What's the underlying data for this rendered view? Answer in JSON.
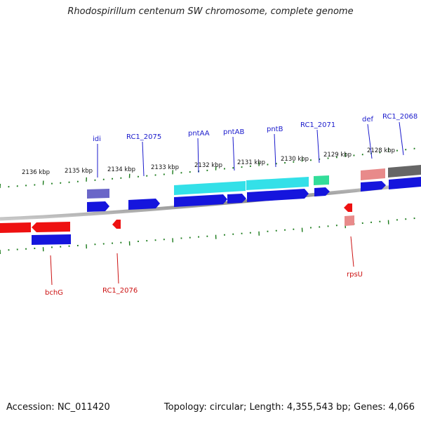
{
  "title": "Rhodospirillum centenum SW chromosome, complete genome",
  "footer": {
    "accession": "Accession: NC_011420",
    "summary": "Topology: circular; Length: 4,355,543 bp; Genes: 4,066"
  },
  "scale_labels": [
    {
      "id": "2136",
      "text": "2136 kbp"
    },
    {
      "id": "2135",
      "text": "2135 kbp"
    },
    {
      "id": "2134",
      "text": "2134 kbp"
    },
    {
      "id": "2133",
      "text": "2133 kbp"
    },
    {
      "id": "2132",
      "text": "2132 kbp"
    },
    {
      "id": "2131",
      "text": "2131 kbp"
    },
    {
      "id": "2130",
      "text": "2130 kbp"
    },
    {
      "id": "2129",
      "text": "2129 kbp"
    },
    {
      "id": "2128",
      "text": "2128 kbp"
    }
  ],
  "genes_top": [
    {
      "id": "idi",
      "label": "idi"
    },
    {
      "id": "rc1_2075",
      "label": "RC1_2075"
    },
    {
      "id": "pntaa",
      "label": "pntAA"
    },
    {
      "id": "pntab",
      "label": "pntAB"
    },
    {
      "id": "pntb",
      "label": "pntB"
    },
    {
      "id": "rc1_2071",
      "label": "RC1_2071"
    },
    {
      "id": "def",
      "label": "def"
    },
    {
      "id": "rc1_2068",
      "label": "RC1_2068"
    }
  ],
  "genes_bottom": [
    {
      "id": "bchg",
      "label": "bchG"
    },
    {
      "id": "rc1_2076",
      "label": "RC1_2076"
    },
    {
      "id": "rpsu",
      "label": "rpsU"
    }
  ],
  "colors": {
    "label_blue": "#1a1acc",
    "label_red": "#cc1111",
    "cds_blue": "#1515dd",
    "cds_red": "#ee1111",
    "cyan": "#33e0e8",
    "slate": "#6a66c8",
    "green": "#33dd99",
    "pink": "#e88a8a",
    "grey": "#666666",
    "tick_green": "#1a7a1a"
  }
}
